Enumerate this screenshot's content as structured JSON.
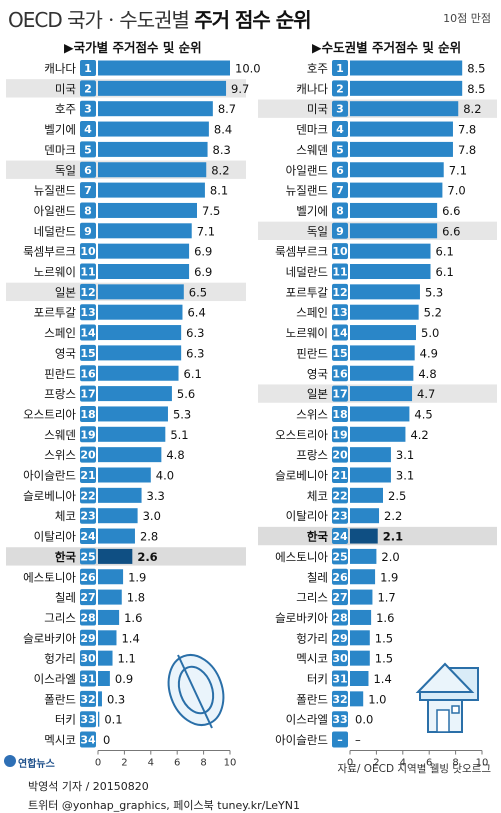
{
  "title_light": "OECD 국가ㆍ수도권별 ",
  "title_bold": "주거 점수 순위",
  "subtitle": "10점 만점",
  "source": "자료/ OECD 지역별 웰빙 닷오르그",
  "credit": "박영석 기자 / 20150820",
  "social": "트위터 @yonhap_graphics, 페이스북 tuney.kr/LeYN1",
  "logo_text": "연합뉴스",
  "colors": {
    "bar": "#2a86c8",
    "highlight_bar": "#0f4f83",
    "band": "#e6e6e6",
    "badge": "#2a86c8"
  },
  "chart_data": [
    {
      "type": "bar",
      "title": "▶국가별 주거점수 및 순위",
      "orientation": "horizontal",
      "xlim": [
        0,
        10
      ],
      "x_ticks": [
        0,
        2,
        4,
        6,
        8,
        10
      ],
      "grid": false,
      "highlighted": [
        "한국"
      ],
      "banded": [
        "미국",
        "독일",
        "일본",
        "한국"
      ],
      "ranks": [
        1,
        2,
        3,
        4,
        5,
        6,
        7,
        8,
        9,
        10,
        11,
        12,
        13,
        14,
        15,
        16,
        17,
        18,
        19,
        20,
        21,
        22,
        23,
        24,
        25,
        26,
        27,
        28,
        29,
        30,
        31,
        32,
        33,
        34
      ],
      "categories": [
        "캐나다",
        "미국",
        "호주",
        "벨기에",
        "덴마크",
        "독일",
        "뉴질랜드",
        "아일랜드",
        "네덜란드",
        "룩셈부르크",
        "노르웨이",
        "일본",
        "포르투갈",
        "스페인",
        "영국",
        "핀란드",
        "프랑스",
        "오스트리아",
        "스웨덴",
        "스위스",
        "아이슬란드",
        "슬로베니아",
        "체코",
        "이탈리아",
        "한국",
        "에스토니아",
        "칠레",
        "그리스",
        "슬로바키아",
        "헝가리",
        "이스라엘",
        "폴란드",
        "터키",
        "멕시코"
      ],
      "labels": [
        "10.0",
        "9.7",
        "8.7",
        "8.4",
        "8.3",
        "8.2",
        "8.1",
        "7.5",
        "7.1",
        "6.9",
        "6.9",
        "6.5",
        "6.4",
        "6.3",
        "6.3",
        "6.1",
        "5.6",
        "5.3",
        "5.1",
        "4.8",
        "4.0",
        "3.3",
        "3.0",
        "2.8",
        "2.6",
        "1.9",
        "1.8",
        "1.6",
        "1.4",
        "1.1",
        "0.9",
        "0.3",
        "0.1",
        "0"
      ],
      "values": [
        10.0,
        9.7,
        8.7,
        8.4,
        8.3,
        8.2,
        8.1,
        7.5,
        7.1,
        6.9,
        6.9,
        6.5,
        6.4,
        6.3,
        6.3,
        6.1,
        5.6,
        5.3,
        5.1,
        4.8,
        4.0,
        3.3,
        3.0,
        2.8,
        2.6,
        1.9,
        1.8,
        1.6,
        1.4,
        1.1,
        0.9,
        0.3,
        0.1,
        0
      ]
    },
    {
      "type": "bar",
      "title": "▶수도권별 주거점수 및 순위",
      "orientation": "horizontal",
      "xlim": [
        0,
        10
      ],
      "x_ticks": [
        0,
        2,
        4,
        6,
        8,
        10
      ],
      "grid": false,
      "highlighted": [
        "한국"
      ],
      "banded": [
        "미국",
        "독일",
        "일본",
        "한국"
      ],
      "ranks": [
        "1",
        "2",
        "3",
        "4",
        "5",
        "6",
        "7",
        "8",
        "9",
        "10",
        "11",
        "12",
        "13",
        "14",
        "15",
        "16",
        "17",
        "18",
        "19",
        "20",
        "21",
        "22",
        "23",
        "24",
        "25",
        "26",
        "27",
        "28",
        "29",
        "30",
        "31",
        "32",
        "33",
        "–"
      ],
      "categories": [
        "호주",
        "캐나다",
        "미국",
        "덴마크",
        "스웨덴",
        "아일랜드",
        "뉴질랜드",
        "벨기에",
        "독일",
        "룩셈부르크",
        "네덜란드",
        "포르투갈",
        "스페인",
        "노르웨이",
        "핀란드",
        "영국",
        "일본",
        "스위스",
        "오스트리아",
        "프랑스",
        "슬로베니아",
        "체코",
        "이탈리아",
        "한국",
        "에스토니아",
        "칠레",
        "그리스",
        "슬로바키아",
        "헝가리",
        "멕시코",
        "터키",
        "폴란드",
        "이스라엘",
        "아이슬란드"
      ],
      "labels": [
        "8.5",
        "8.5",
        "8.2",
        "7.8",
        "7.8",
        "7.1",
        "7.0",
        "6.6",
        "6.6",
        "6.1",
        "6.1",
        "5.3",
        "5.2",
        "5.0",
        "4.9",
        "4.8",
        "4.7",
        "4.5",
        "4.2",
        "3.1",
        "3.1",
        "2.5",
        "2.2",
        "2.1",
        "2.0",
        "1.9",
        "1.7",
        "1.6",
        "1.5",
        "1.5",
        "1.4",
        "1.0",
        "0.0",
        "–"
      ],
      "values": [
        8.5,
        8.5,
        8.2,
        7.8,
        7.8,
        7.1,
        7.0,
        6.6,
        6.6,
        6.1,
        6.1,
        5.3,
        5.2,
        5.0,
        4.9,
        4.8,
        4.7,
        4.5,
        4.2,
        3.1,
        3.1,
        2.5,
        2.2,
        2.1,
        2.0,
        1.9,
        1.7,
        1.6,
        1.5,
        1.5,
        1.4,
        1.0,
        0.0,
        null
      ]
    }
  ]
}
